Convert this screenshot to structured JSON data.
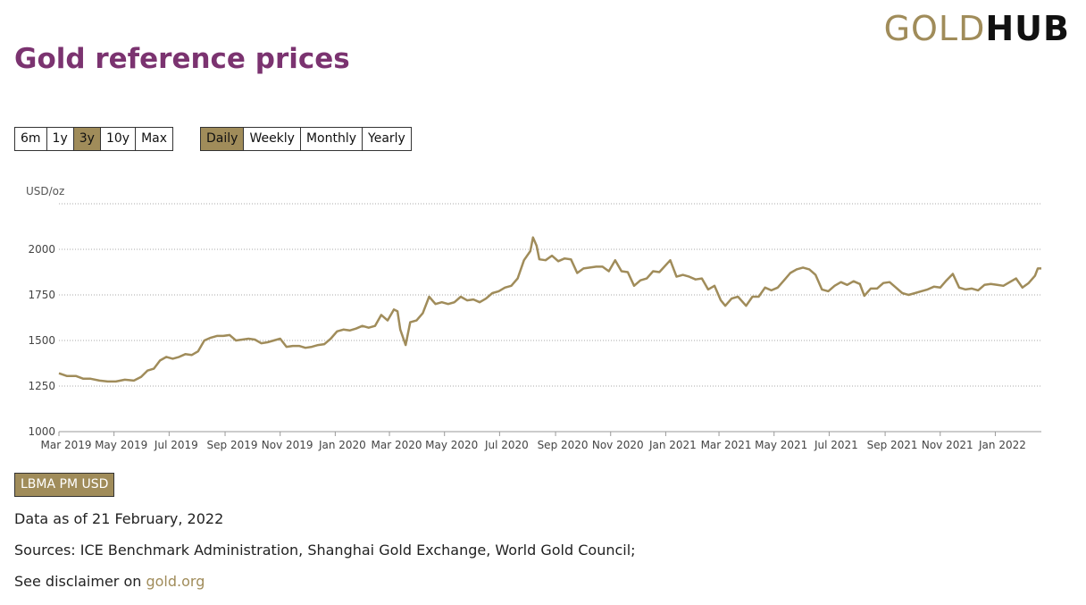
{
  "logo": {
    "gold": "GOLD",
    "hub": "HUB"
  },
  "title": "Gold reference prices",
  "range_buttons": [
    "6m",
    "1y",
    "3y",
    "10y",
    "Max"
  ],
  "range_active": "3y",
  "frequency_buttons": [
    "Daily",
    "Weekly",
    "Monthly",
    "Yearly"
  ],
  "frequency_active": "Daily",
  "legend_button": "LBMA PM USD",
  "footer": {
    "data_as_of": "Data as of 21 February, 2022",
    "sources": "Sources: ICE Benchmark Administration, Shanghai Gold Exchange, World Gold Council;",
    "disclaimer_prefix": "See disclaimer on ",
    "disclaimer_link": "gold.org"
  },
  "colors": {
    "line": "#a08c5a",
    "title": "#7b3370",
    "active_button": "#a08c5a"
  },
  "chart_data": {
    "type": "line",
    "title": "",
    "ylabel": "USD/oz",
    "ylim": [
      1000,
      2250
    ],
    "yticks": [
      1000,
      1250,
      1500,
      1750,
      2000
    ],
    "xlim": [
      "2019-03-01",
      "2022-02-21"
    ],
    "xticks": [
      {
        "date": "2019-03-01",
        "label": "Mar 2019"
      },
      {
        "date": "2019-05-01",
        "label": "May 2019"
      },
      {
        "date": "2019-07-01",
        "label": "Jul 2019"
      },
      {
        "date": "2019-09-01",
        "label": "Sep 2019"
      },
      {
        "date": "2019-11-01",
        "label": "Nov 2019"
      },
      {
        "date": "2020-01-01",
        "label": "Jan 2020"
      },
      {
        "date": "2020-03-01",
        "label": "Mar 2020"
      },
      {
        "date": "2020-05-01",
        "label": "May 2020"
      },
      {
        "date": "2020-07-01",
        "label": "Jul 2020"
      },
      {
        "date": "2020-09-01",
        "label": "Sep 2020"
      },
      {
        "date": "2020-11-01",
        "label": "Nov 2020"
      },
      {
        "date": "2021-01-01",
        "label": "Jan 2021"
      },
      {
        "date": "2021-03-01",
        "label": "Mar 2021"
      },
      {
        "date": "2021-05-01",
        "label": "May 2021"
      },
      {
        "date": "2021-07-01",
        "label": "Jul 2021"
      },
      {
        "date": "2021-09-01",
        "label": "Sep 2021"
      },
      {
        "date": "2021-11-01",
        "label": "Nov 2021"
      },
      {
        "date": "2022-01-01",
        "label": "Jan 2022"
      }
    ],
    "grid": true,
    "series": [
      {
        "name": "LBMA PM USD",
        "points": [
          [
            "2019-03-01",
            1320
          ],
          [
            "2019-03-10",
            1305
          ],
          [
            "2019-03-20",
            1305
          ],
          [
            "2019-03-28",
            1290
          ],
          [
            "2019-04-05",
            1290
          ],
          [
            "2019-04-15",
            1280
          ],
          [
            "2019-04-24",
            1275
          ],
          [
            "2019-05-03",
            1275
          ],
          [
            "2019-05-13",
            1285
          ],
          [
            "2019-05-23",
            1280
          ],
          [
            "2019-05-31",
            1300
          ],
          [
            "2019-06-07",
            1335
          ],
          [
            "2019-06-14",
            1345
          ],
          [
            "2019-06-21",
            1390
          ],
          [
            "2019-06-28",
            1410
          ],
          [
            "2019-07-05",
            1400
          ],
          [
            "2019-07-12",
            1410
          ],
          [
            "2019-07-19",
            1425
          ],
          [
            "2019-07-26",
            1420
          ],
          [
            "2019-08-02",
            1440
          ],
          [
            "2019-08-09",
            1500
          ],
          [
            "2019-08-16",
            1515
          ],
          [
            "2019-08-23",
            1525
          ],
          [
            "2019-08-30",
            1525
          ],
          [
            "2019-09-06",
            1530
          ],
          [
            "2019-09-13",
            1500
          ],
          [
            "2019-09-20",
            1505
          ],
          [
            "2019-09-27",
            1510
          ],
          [
            "2019-10-04",
            1505
          ],
          [
            "2019-10-11",
            1485
          ],
          [
            "2019-10-18",
            1490
          ],
          [
            "2019-10-25",
            1500
          ],
          [
            "2019-11-01",
            1510
          ],
          [
            "2019-11-08",
            1465
          ],
          [
            "2019-11-15",
            1470
          ],
          [
            "2019-11-22",
            1470
          ],
          [
            "2019-11-29",
            1460
          ],
          [
            "2019-12-06",
            1465
          ],
          [
            "2019-12-13",
            1475
          ],
          [
            "2019-12-20",
            1480
          ],
          [
            "2019-12-27",
            1510
          ],
          [
            "2020-01-03",
            1550
          ],
          [
            "2020-01-10",
            1560
          ],
          [
            "2020-01-17",
            1555
          ],
          [
            "2020-01-24",
            1565
          ],
          [
            "2020-01-31",
            1580
          ],
          [
            "2020-02-07",
            1570
          ],
          [
            "2020-02-14",
            1580
          ],
          [
            "2020-02-21",
            1640
          ],
          [
            "2020-02-28",
            1610
          ],
          [
            "2020-03-06",
            1670
          ],
          [
            "2020-03-10",
            1660
          ],
          [
            "2020-03-13",
            1560
          ],
          [
            "2020-03-19",
            1475
          ],
          [
            "2020-03-24",
            1600
          ],
          [
            "2020-03-31",
            1610
          ],
          [
            "2020-04-07",
            1650
          ],
          [
            "2020-04-14",
            1740
          ],
          [
            "2020-04-21",
            1700
          ],
          [
            "2020-04-28",
            1710
          ],
          [
            "2020-05-05",
            1700
          ],
          [
            "2020-05-12",
            1710
          ],
          [
            "2020-05-19",
            1740
          ],
          [
            "2020-05-26",
            1720
          ],
          [
            "2020-06-02",
            1725
          ],
          [
            "2020-06-09",
            1710
          ],
          [
            "2020-06-16",
            1730
          ],
          [
            "2020-06-23",
            1760
          ],
          [
            "2020-06-30",
            1770
          ],
          [
            "2020-07-07",
            1790
          ],
          [
            "2020-07-14",
            1800
          ],
          [
            "2020-07-21",
            1840
          ],
          [
            "2020-07-28",
            1940
          ],
          [
            "2020-08-04",
            1990
          ],
          [
            "2020-08-07",
            2065
          ],
          [
            "2020-08-11",
            2020
          ],
          [
            "2020-08-14",
            1945
          ],
          [
            "2020-08-21",
            1940
          ],
          [
            "2020-08-28",
            1965
          ],
          [
            "2020-09-04",
            1935
          ],
          [
            "2020-09-11",
            1950
          ],
          [
            "2020-09-18",
            1945
          ],
          [
            "2020-09-25",
            1870
          ],
          [
            "2020-10-02",
            1895
          ],
          [
            "2020-10-09",
            1900
          ],
          [
            "2020-10-16",
            1905
          ],
          [
            "2020-10-23",
            1905
          ],
          [
            "2020-10-30",
            1880
          ],
          [
            "2020-11-06",
            1940
          ],
          [
            "2020-11-13",
            1880
          ],
          [
            "2020-11-20",
            1875
          ],
          [
            "2020-11-27",
            1800
          ],
          [
            "2020-12-04",
            1830
          ],
          [
            "2020-12-11",
            1840
          ],
          [
            "2020-12-18",
            1880
          ],
          [
            "2020-12-25",
            1875
          ],
          [
            "2021-01-06",
            1940
          ],
          [
            "2021-01-13",
            1850
          ],
          [
            "2021-01-20",
            1860
          ],
          [
            "2021-01-27",
            1850
          ],
          [
            "2021-02-03",
            1835
          ],
          [
            "2021-02-10",
            1840
          ],
          [
            "2021-02-17",
            1780
          ],
          [
            "2021-02-24",
            1800
          ],
          [
            "2021-03-03",
            1720
          ],
          [
            "2021-03-08",
            1690
          ],
          [
            "2021-03-15",
            1730
          ],
          [
            "2021-03-22",
            1740
          ],
          [
            "2021-03-31",
            1690
          ],
          [
            "2021-04-07",
            1740
          ],
          [
            "2021-04-14",
            1740
          ],
          [
            "2021-04-21",
            1790
          ],
          [
            "2021-04-28",
            1775
          ],
          [
            "2021-05-05",
            1790
          ],
          [
            "2021-05-12",
            1830
          ],
          [
            "2021-05-19",
            1870
          ],
          [
            "2021-05-26",
            1890
          ],
          [
            "2021-06-02",
            1900
          ],
          [
            "2021-06-09",
            1890
          ],
          [
            "2021-06-16",
            1860
          ],
          [
            "2021-06-23",
            1780
          ],
          [
            "2021-06-30",
            1770
          ],
          [
            "2021-07-07",
            1800
          ],
          [
            "2021-07-14",
            1820
          ],
          [
            "2021-07-21",
            1805
          ],
          [
            "2021-07-28",
            1825
          ],
          [
            "2021-08-04",
            1810
          ],
          [
            "2021-08-09",
            1745
          ],
          [
            "2021-08-16",
            1785
          ],
          [
            "2021-08-23",
            1785
          ],
          [
            "2021-08-30",
            1815
          ],
          [
            "2021-09-06",
            1820
          ],
          [
            "2021-09-13",
            1790
          ],
          [
            "2021-09-20",
            1760
          ],
          [
            "2021-09-27",
            1750
          ],
          [
            "2021-10-04",
            1760
          ],
          [
            "2021-10-11",
            1770
          ],
          [
            "2021-10-18",
            1780
          ],
          [
            "2021-10-25",
            1795
          ],
          [
            "2021-11-01",
            1790
          ],
          [
            "2021-11-08",
            1830
          ],
          [
            "2021-11-15",
            1865
          ],
          [
            "2021-11-22",
            1790
          ],
          [
            "2021-11-29",
            1780
          ],
          [
            "2021-12-06",
            1785
          ],
          [
            "2021-12-13",
            1775
          ],
          [
            "2021-12-20",
            1805
          ],
          [
            "2021-12-27",
            1810
          ],
          [
            "2022-01-03",
            1805
          ],
          [
            "2022-01-10",
            1800
          ],
          [
            "2022-01-17",
            1820
          ],
          [
            "2022-01-24",
            1840
          ],
          [
            "2022-01-31",
            1790
          ],
          [
            "2022-02-07",
            1815
          ],
          [
            "2022-02-14",
            1855
          ],
          [
            "2022-02-17",
            1895
          ],
          [
            "2022-02-21",
            1895
          ]
        ]
      }
    ]
  }
}
